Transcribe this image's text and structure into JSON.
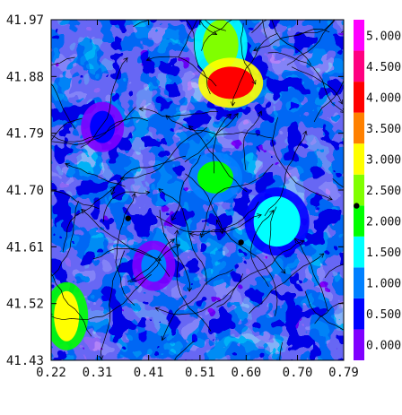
{
  "chart_data": {
    "type": "heatmap",
    "title": "",
    "xlabel": "",
    "ylabel": "",
    "xlim": [
      0.22,
      0.79
    ],
    "ylim": [
      41.43,
      41.97
    ],
    "x_ticks": [
      "0.22",
      "0.31",
      "0.41",
      "0.51",
      "0.60",
      "0.70",
      "0.79"
    ],
    "y_ticks": [
      "41.97",
      "41.88",
      "41.79",
      "41.70",
      "41.61",
      "41.52",
      "41.43"
    ],
    "colorbar": {
      "labels": [
        "0.000",
        "0.500",
        "1.000",
        "1.500",
        "2.000",
        "2.500",
        "3.000",
        "3.500",
        "4.000",
        "4.500",
        "5.000"
      ],
      "values": [
        0.0,
        0.5,
        1.0,
        1.5,
        2.0,
        2.5,
        3.0,
        3.5,
        4.0,
        4.5,
        5.0
      ],
      "colors": [
        "#8000ff",
        "#0000ff",
        "#0080ff",
        "#00ffff",
        "#00ff00",
        "#80ff00",
        "#ffff00",
        "#ff8000",
        "#ff0000",
        "#ff0080",
        "#ff00ff"
      ]
    },
    "overlay": "streamlines",
    "markers": [
      {
        "x": 0.37,
        "y": 41.655
      },
      {
        "x": 0.59,
        "y": 41.617
      },
      {
        "x": 0.815,
        "y": 41.675
      }
    ],
    "field_regions": [
      {
        "x": 0.32,
        "y": 41.8,
        "level": 0.5
      },
      {
        "x": 0.55,
        "y": 41.93,
        "level": 2.5
      },
      {
        "x": 0.57,
        "y": 41.87,
        "level": 3.8
      },
      {
        "x": 0.25,
        "y": 41.5,
        "level": 3.0
      },
      {
        "x": 0.54,
        "y": 41.72,
        "level": 2.0
      },
      {
        "x": 0.66,
        "y": 41.65,
        "level": 1.5
      },
      {
        "x": 0.42,
        "y": 41.58,
        "level": 1.2
      }
    ]
  }
}
